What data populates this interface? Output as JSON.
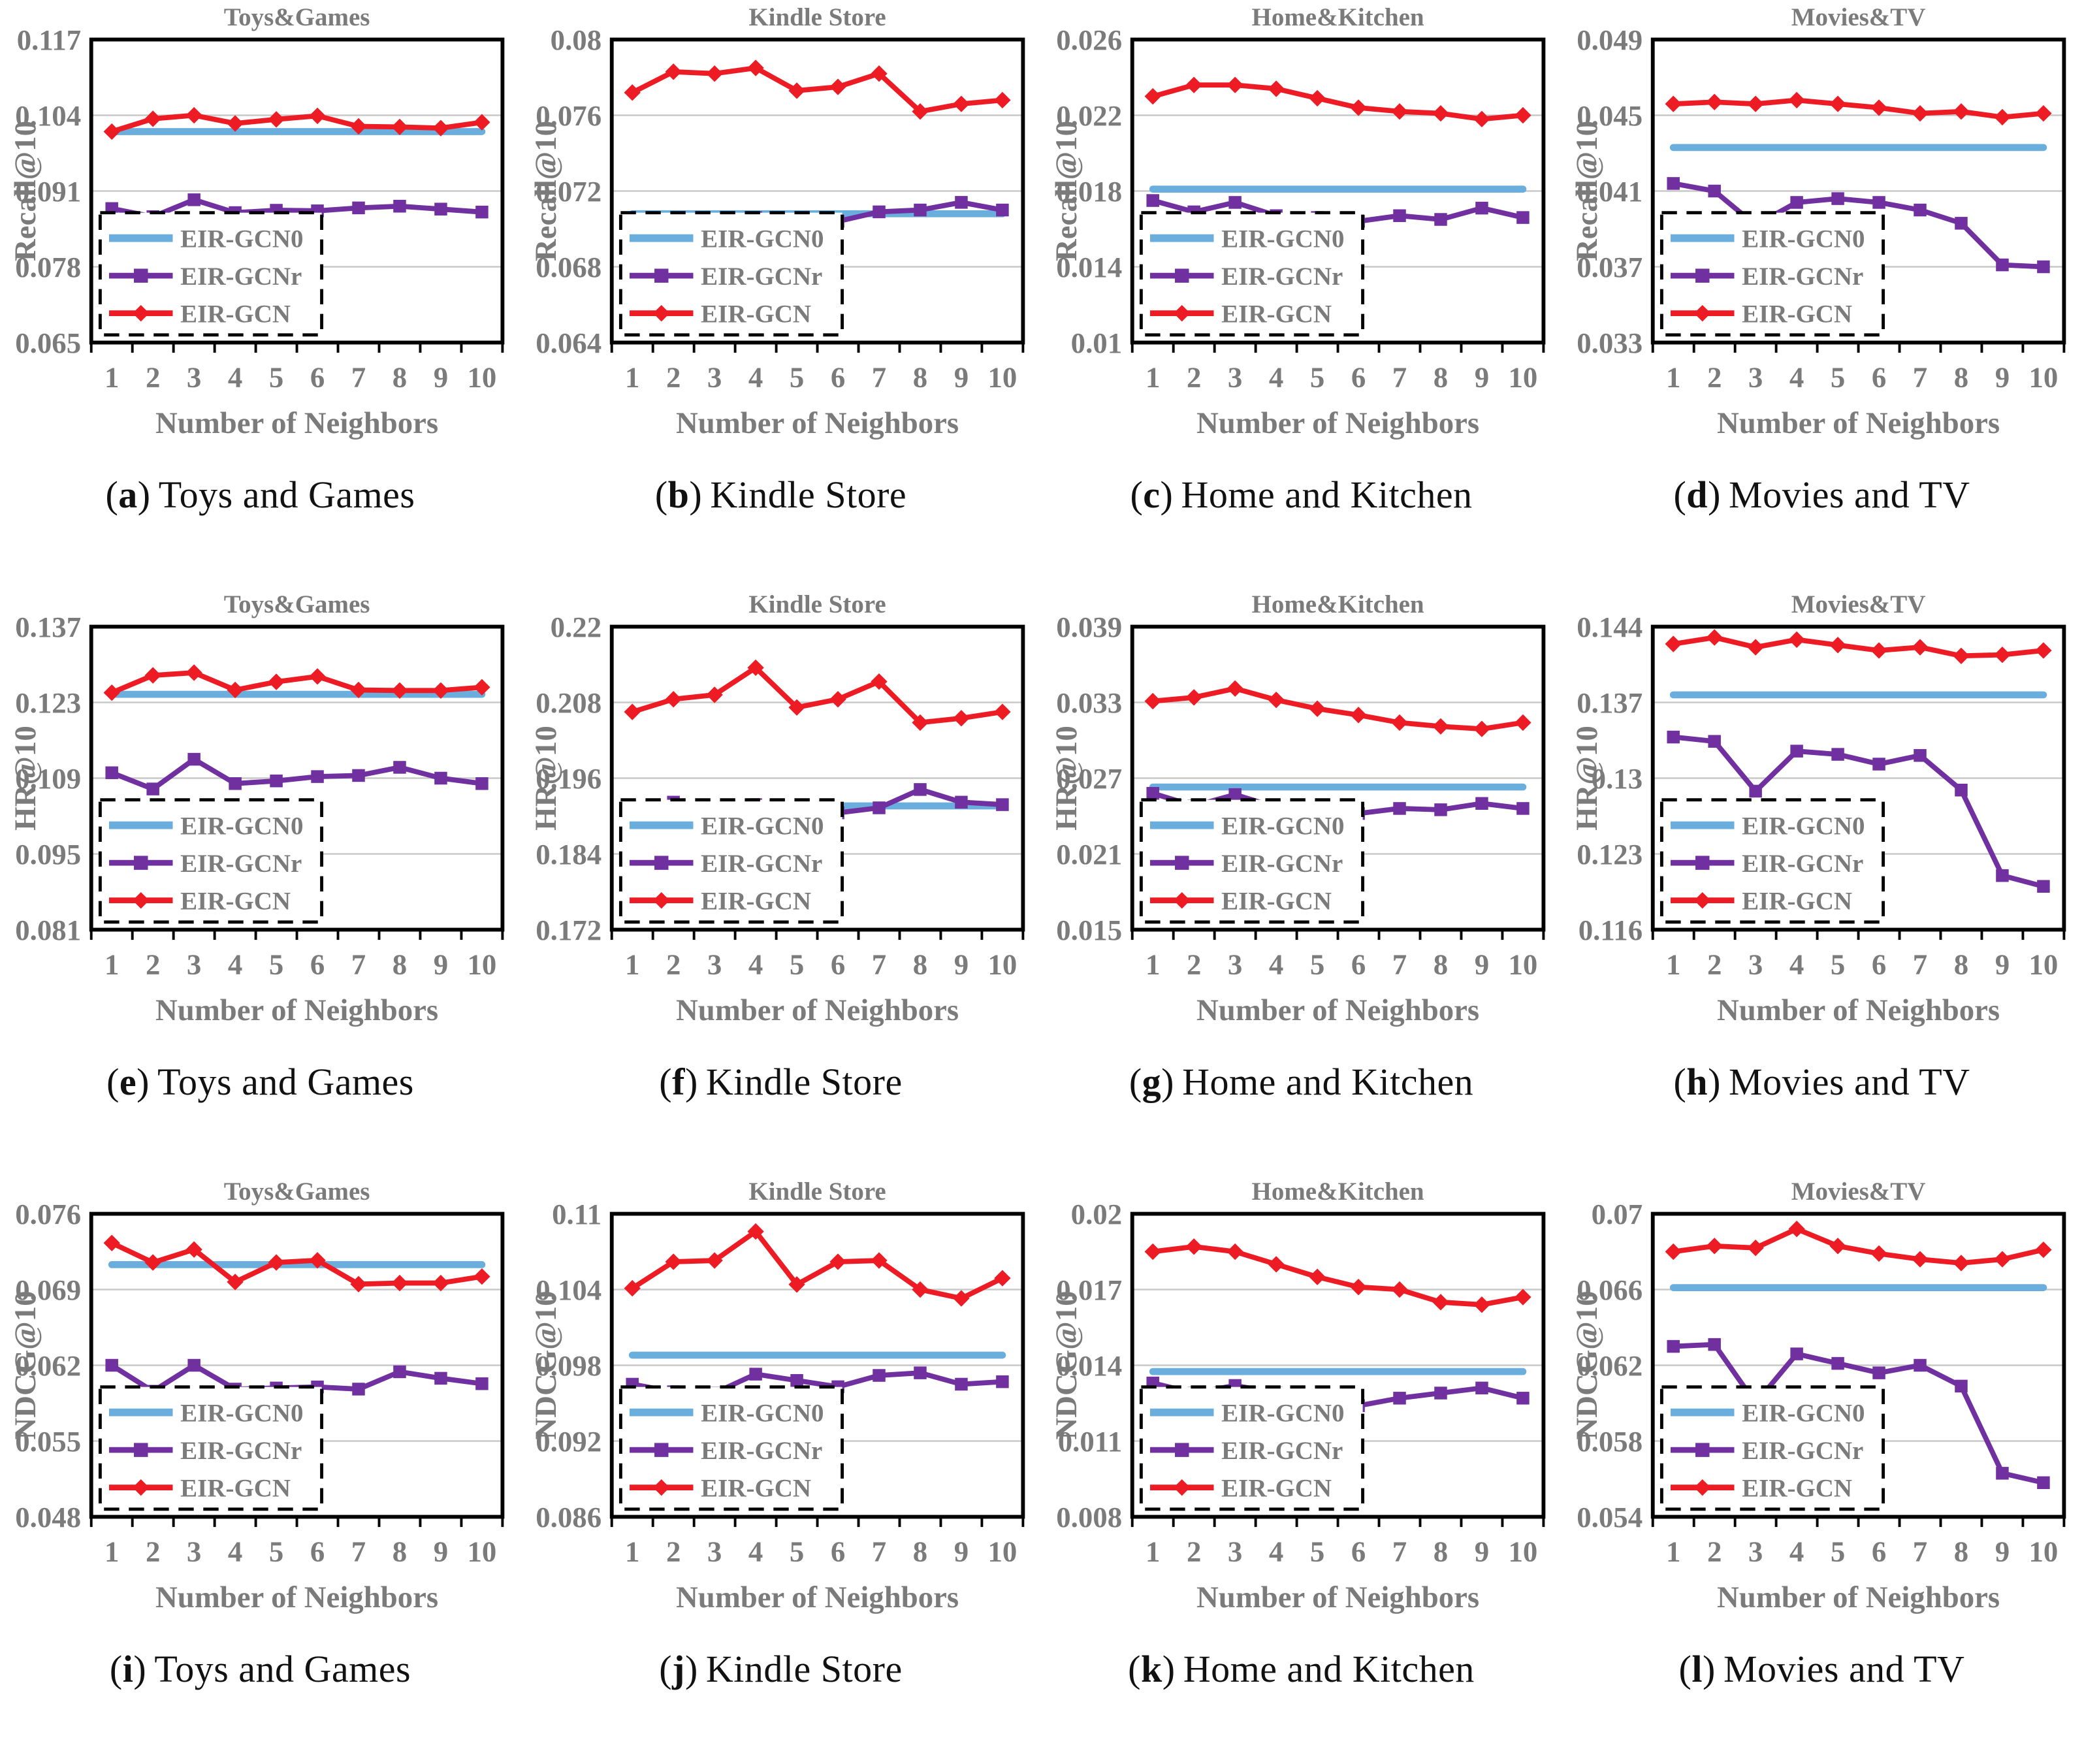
{
  "page": {
    "background": "#ffffff"
  },
  "colors": {
    "series_gcn0": "#6aaede",
    "series_gcnr": "#7030a0",
    "series_gcn": "#ed1c24",
    "axis_text": "#7b7b7b",
    "grid": "#c8c8c8",
    "plot_border": "#000000",
    "caption_text": "#111111"
  },
  "caption_format": {
    "open": "(",
    "close": ")"
  },
  "shared": {
    "xlabel": "Number of Neighbors",
    "legend_labels": [
      "EIR-GCN0",
      "EIR-GCNr",
      "EIR-GCN"
    ],
    "legend_position": "bottom-left",
    "grid": "horizontal"
  },
  "chart_data": [
    {
      "type": "line",
      "id": "a",
      "title": "Toys&Games",
      "ylabel": "Recall@10",
      "xlabel": "Number of Neighbors",
      "x": [
        1,
        2,
        3,
        4,
        5,
        6,
        7,
        8,
        9,
        10
      ],
      "ylim": [
        0.065,
        0.117
      ],
      "yticks": [
        "0.065",
        "0.078",
        "0.091",
        "0.104",
        "0.117"
      ],
      "series": [
        {
          "name": "EIR-GCN0",
          "color": "#6aaede",
          "marker": "none",
          "values": [
            0.1012,
            0.1012,
            0.1012,
            0.1012,
            0.1012,
            0.1012,
            0.1012,
            0.1012,
            0.1012,
            0.1012
          ]
        },
        {
          "name": "EIR-GCNr",
          "color": "#7030a0",
          "marker": "square",
          "values": [
            0.088,
            0.0866,
            0.0895,
            0.0873,
            0.0877,
            0.0876,
            0.0881,
            0.0884,
            0.0879,
            0.0874
          ]
        },
        {
          "name": "EIR-GCN",
          "color": "#ed1c24",
          "marker": "diamond",
          "values": [
            0.1012,
            0.1034,
            0.104,
            0.1026,
            0.1033,
            0.1039,
            0.1021,
            0.102,
            0.1018,
            0.1028
          ]
        }
      ],
      "caption": {
        "letter": "a",
        "text": "Toys and Games"
      }
    },
    {
      "type": "line",
      "id": "b",
      "title": "Kindle Store",
      "ylabel": "Recall@10",
      "xlabel": "Number of Neighbors",
      "x": [
        1,
        2,
        3,
        4,
        5,
        6,
        7,
        8,
        9,
        10
      ],
      "ylim": [
        0.064,
        0.08
      ],
      "yticks": [
        "0.064",
        "0.068",
        "0.072",
        "0.076",
        "0.08"
      ],
      "series": [
        {
          "name": "EIR-GCN0",
          "color": "#6aaede",
          "marker": "none",
          "values": [
            0.0708,
            0.0708,
            0.0708,
            0.0708,
            0.0708,
            0.0708,
            0.0708,
            0.0708,
            0.0708,
            0.0708
          ]
        },
        {
          "name": "EIR-GCNr",
          "color": "#7030a0",
          "marker": "square",
          "values": [
            0.0705,
            0.07,
            0.0704,
            0.0706,
            0.0705,
            0.0704,
            0.0709,
            0.071,
            0.0714,
            0.071
          ]
        },
        {
          "name": "EIR-GCN",
          "color": "#ed1c24",
          "marker": "diamond",
          "values": [
            0.0772,
            0.0783,
            0.0782,
            0.0785,
            0.0773,
            0.0775,
            0.0782,
            0.0762,
            0.0766,
            0.0768
          ]
        }
      ],
      "caption": {
        "letter": "b",
        "text": "Kindle Store"
      }
    },
    {
      "type": "line",
      "id": "c",
      "title": "Home&Kitchen",
      "ylabel": "Recall@10",
      "xlabel": "Number of Neighbors",
      "x": [
        1,
        2,
        3,
        4,
        5,
        6,
        7,
        8,
        9,
        10
      ],
      "ylim": [
        0.01,
        0.026
      ],
      "yticks": [
        "0.01",
        "0.014",
        "0.018",
        "0.022",
        "0.026"
      ],
      "series": [
        {
          "name": "EIR-GCN0",
          "color": "#6aaede",
          "marker": "none",
          "values": [
            0.0181,
            0.0181,
            0.0181,
            0.0181,
            0.0181,
            0.0181,
            0.0181,
            0.0181,
            0.0181,
            0.0181
          ]
        },
        {
          "name": "EIR-GCNr",
          "color": "#7030a0",
          "marker": "square",
          "values": [
            0.0175,
            0.0169,
            0.0174,
            0.0167,
            0.0166,
            0.0164,
            0.0167,
            0.0165,
            0.0171,
            0.0166
          ]
        },
        {
          "name": "EIR-GCN",
          "color": "#ed1c24",
          "marker": "diamond",
          "values": [
            0.023,
            0.0236,
            0.0236,
            0.0234,
            0.0229,
            0.0224,
            0.0222,
            0.0221,
            0.0218,
            0.022
          ]
        }
      ],
      "caption": {
        "letter": "c",
        "text": "Home and Kitchen"
      }
    },
    {
      "type": "line",
      "id": "d",
      "title": "Movies&TV",
      "ylabel": "Recall@10",
      "xlabel": "Number of Neighbors",
      "x": [
        1,
        2,
        3,
        4,
        5,
        6,
        7,
        8,
        9,
        10
      ],
      "ylim": [
        0.033,
        0.049
      ],
      "yticks": [
        "0.033",
        "0.037",
        "0.041",
        "0.045",
        "0.049"
      ],
      "series": [
        {
          "name": "EIR-GCN0",
          "color": "#6aaede",
          "marker": "none",
          "values": [
            0.0433,
            0.0433,
            0.0433,
            0.0433,
            0.0433,
            0.0433,
            0.0433,
            0.0433,
            0.0433,
            0.0433
          ]
        },
        {
          "name": "EIR-GCNr",
          "color": "#7030a0",
          "marker": "square",
          "values": [
            0.0414,
            0.041,
            0.0392,
            0.0404,
            0.0406,
            0.0404,
            0.04,
            0.0393,
            0.0371,
            0.037
          ]
        },
        {
          "name": "EIR-GCN",
          "color": "#ed1c24",
          "marker": "diamond",
          "values": [
            0.0456,
            0.0457,
            0.0456,
            0.0458,
            0.0456,
            0.0454,
            0.0451,
            0.0452,
            0.0449,
            0.0451
          ]
        }
      ],
      "caption": {
        "letter": "d",
        "text": "Movies and TV"
      }
    },
    {
      "type": "line",
      "id": "e",
      "title": "Toys&Games",
      "ylabel": "HR@10",
      "xlabel": "Number of Neighbors",
      "x": [
        1,
        2,
        3,
        4,
        5,
        6,
        7,
        8,
        9,
        10
      ],
      "ylim": [
        0.081,
        0.137
      ],
      "yticks": [
        "0.081",
        "0.095",
        "0.109",
        "0.123",
        "0.137"
      ],
      "series": [
        {
          "name": "EIR-GCN0",
          "color": "#6aaede",
          "marker": "none",
          "values": [
            0.1245,
            0.1245,
            0.1245,
            0.1245,
            0.1245,
            0.1245,
            0.1245,
            0.1245,
            0.1245,
            0.1245
          ]
        },
        {
          "name": "EIR-GCNr",
          "color": "#7030a0",
          "marker": "square",
          "values": [
            0.11,
            0.107,
            0.1125,
            0.108,
            0.1085,
            0.1093,
            0.1095,
            0.111,
            0.109,
            0.108
          ]
        },
        {
          "name": "EIR-GCN",
          "color": "#ed1c24",
          "marker": "diamond",
          "values": [
            0.1248,
            0.128,
            0.1285,
            0.1253,
            0.1268,
            0.1278,
            0.1253,
            0.1252,
            0.1252,
            0.1258
          ]
        }
      ],
      "caption": {
        "letter": "e",
        "text": "Toys and Games"
      }
    },
    {
      "type": "line",
      "id": "f",
      "title": "Kindle Store",
      "ylabel": "HR@10",
      "xlabel": "Number of Neighbors",
      "x": [
        1,
        2,
        3,
        4,
        5,
        6,
        7,
        8,
        9,
        10
      ],
      "ylim": [
        0.172,
        0.22
      ],
      "yticks": [
        "0.172",
        "0.184",
        "0.196",
        "0.208",
        "0.22"
      ],
      "series": [
        {
          "name": "EIR-GCN0",
          "color": "#6aaede",
          "marker": "none",
          "values": [
            0.1916,
            0.1916,
            0.1916,
            0.1916,
            0.1916,
            0.1916,
            0.1916,
            0.1916,
            0.1916,
            0.1916
          ]
        },
        {
          "name": "EIR-GCNr",
          "color": "#7030a0",
          "marker": "square",
          "values": [
            0.1912,
            0.1922,
            0.191,
            0.1918,
            0.1913,
            0.1905,
            0.1913,
            0.1942,
            0.1922,
            0.1918
          ]
        },
        {
          "name": "EIR-GCN",
          "color": "#ed1c24",
          "marker": "diamond",
          "values": [
            0.2065,
            0.2085,
            0.2092,
            0.2135,
            0.2072,
            0.2085,
            0.2113,
            0.2048,
            0.2055,
            0.2065
          ]
        }
      ],
      "caption": {
        "letter": "f",
        "text": "Kindle Store"
      }
    },
    {
      "type": "line",
      "id": "g",
      "title": "Home&Kitchen",
      "ylabel": "HR@10",
      "xlabel": "Number of Neighbors",
      "x": [
        1,
        2,
        3,
        4,
        5,
        6,
        7,
        8,
        9,
        10
      ],
      "ylim": [
        0.015,
        0.039
      ],
      "yticks": [
        "0.015",
        "0.021",
        "0.027",
        "0.033",
        "0.039"
      ],
      "series": [
        {
          "name": "EIR-GCN0",
          "color": "#6aaede",
          "marker": "none",
          "values": [
            0.0263,
            0.0263,
            0.0263,
            0.0263,
            0.0263,
            0.0263,
            0.0263,
            0.0263,
            0.0263,
            0.0263
          ]
        },
        {
          "name": "EIR-GCNr",
          "color": "#7030a0",
          "marker": "square",
          "values": [
            0.0258,
            0.0248,
            0.0257,
            0.0247,
            0.0245,
            0.0242,
            0.0246,
            0.0245,
            0.025,
            0.0246
          ]
        },
        {
          "name": "EIR-GCN",
          "color": "#ed1c24",
          "marker": "diamond",
          "values": [
            0.0331,
            0.0334,
            0.0341,
            0.0332,
            0.0325,
            0.032,
            0.0314,
            0.0311,
            0.0309,
            0.0314
          ]
        }
      ],
      "caption": {
        "letter": "g",
        "text": "Home and Kitchen"
      }
    },
    {
      "type": "line",
      "id": "h",
      "title": "Movies&TV",
      "ylabel": "HR@10",
      "xlabel": "Number of Neighbors",
      "x": [
        1,
        2,
        3,
        4,
        5,
        6,
        7,
        8,
        9,
        10
      ],
      "ylim": [
        0.116,
        0.144
      ],
      "yticks": [
        "0.116",
        "0.123",
        "0.13",
        "0.137",
        "0.144"
      ],
      "series": [
        {
          "name": "EIR-GCN0",
          "color": "#6aaede",
          "marker": "none",
          "values": [
            0.1377,
            0.1377,
            0.1377,
            0.1377,
            0.1377,
            0.1377,
            0.1377,
            0.1377,
            0.1377,
            0.1377
          ]
        },
        {
          "name": "EIR-GCNr",
          "color": "#7030a0",
          "marker": "square",
          "values": [
            0.1338,
            0.1334,
            0.1288,
            0.1325,
            0.1322,
            0.1313,
            0.1321,
            0.1289,
            0.121,
            0.12
          ]
        },
        {
          "name": "EIR-GCN",
          "color": "#ed1c24",
          "marker": "diamond",
          "values": [
            0.1424,
            0.143,
            0.1421,
            0.1428,
            0.1423,
            0.1418,
            0.1421,
            0.1413,
            0.1414,
            0.1418
          ]
        }
      ],
      "caption": {
        "letter": "h",
        "text": "Movies and TV"
      }
    },
    {
      "type": "line",
      "id": "i",
      "title": "Toys&Games",
      "ylabel": "NDCG@10",
      "xlabel": "Number of Neighbors",
      "x": [
        1,
        2,
        3,
        4,
        5,
        6,
        7,
        8,
        9,
        10
      ],
      "ylim": [
        0.048,
        0.076
      ],
      "yticks": [
        "0.048",
        "0.055",
        "0.062",
        "0.069",
        "0.076"
      ],
      "series": [
        {
          "name": "EIR-GCN0",
          "color": "#6aaede",
          "marker": "none",
          "values": [
            0.0713,
            0.0713,
            0.0713,
            0.0713,
            0.0713,
            0.0713,
            0.0713,
            0.0713,
            0.0713,
            0.0713
          ]
        },
        {
          "name": "EIR-GCNr",
          "color": "#7030a0",
          "marker": "square",
          "values": [
            0.062,
            0.0596,
            0.062,
            0.0598,
            0.0599,
            0.06,
            0.0598,
            0.0614,
            0.0608,
            0.0603
          ]
        },
        {
          "name": "EIR-GCN",
          "color": "#ed1c24",
          "marker": "diamond",
          "values": [
            0.0733,
            0.0715,
            0.0727,
            0.0697,
            0.0715,
            0.0717,
            0.0695,
            0.0696,
            0.0696,
            0.0702
          ]
        }
      ],
      "caption": {
        "letter": "i",
        "text": "Toys and Games"
      }
    },
    {
      "type": "line",
      "id": "j",
      "title": "Kindle Store",
      "ylabel": "NDCG@10",
      "xlabel": "Number of Neighbors",
      "x": [
        1,
        2,
        3,
        4,
        5,
        6,
        7,
        8,
        9,
        10
      ],
      "ylim": [
        0.086,
        0.11
      ],
      "yticks": [
        "0.086",
        "0.092",
        "0.098",
        "0.104",
        "0.11"
      ],
      "series": [
        {
          "name": "EIR-GCN0",
          "color": "#6aaede",
          "marker": "none",
          "values": [
            0.0988,
            0.0988,
            0.0988,
            0.0988,
            0.0988,
            0.0988,
            0.0988,
            0.0988,
            0.0988,
            0.0988
          ]
        },
        {
          "name": "EIR-GCNr",
          "color": "#7030a0",
          "marker": "square",
          "values": [
            0.0965,
            0.0959,
            0.0958,
            0.0973,
            0.0968,
            0.0963,
            0.0972,
            0.0974,
            0.0965,
            0.0967
          ]
        },
        {
          "name": "EIR-GCN",
          "color": "#ed1c24",
          "marker": "diamond",
          "values": [
            0.1041,
            0.1062,
            0.1063,
            0.1086,
            0.1044,
            0.1062,
            0.1063,
            0.104,
            0.1033,
            0.1049
          ]
        }
      ],
      "caption": {
        "letter": "j",
        "text": "Kindle Store"
      }
    },
    {
      "type": "line",
      "id": "k",
      "title": "Home&Kitchen",
      "ylabel": "NDCG@10",
      "xlabel": "Number of Neighbors",
      "x": [
        1,
        2,
        3,
        4,
        5,
        6,
        7,
        8,
        9,
        10
      ],
      "ylim": [
        0.008,
        0.02
      ],
      "yticks": [
        "0.008",
        "0.011",
        "0.014",
        "0.017",
        "0.02"
      ],
      "series": [
        {
          "name": "EIR-GCN0",
          "color": "#6aaede",
          "marker": "none",
          "values": [
            0.01375,
            0.01375,
            0.01375,
            0.01375,
            0.01375,
            0.01375,
            0.01375,
            0.01375,
            0.01375,
            0.01375
          ]
        },
        {
          "name": "EIR-GCNr",
          "color": "#7030a0",
          "marker": "square",
          "values": [
            0.0133,
            0.0129,
            0.0132,
            0.0129,
            0.0128,
            0.0124,
            0.0127,
            0.0129,
            0.0131,
            0.0127
          ]
        },
        {
          "name": "EIR-GCN",
          "color": "#ed1c24",
          "marker": "diamond",
          "values": [
            0.0185,
            0.0187,
            0.0185,
            0.018,
            0.0175,
            0.0171,
            0.017,
            0.0165,
            0.0164,
            0.0167
          ]
        }
      ],
      "caption": {
        "letter": "k",
        "text": "Home and Kitchen"
      }
    },
    {
      "type": "line",
      "id": "l",
      "title": "Movies&TV",
      "ylabel": "NDCG@10",
      "xlabel": "Number of Neighbors",
      "x": [
        1,
        2,
        3,
        4,
        5,
        6,
        7,
        8,
        9,
        10
      ],
      "ylim": [
        0.054,
        0.07
      ],
      "yticks": [
        "0.054",
        "0.058",
        "0.062",
        "0.066",
        "0.07"
      ],
      "series": [
        {
          "name": "EIR-GCN0",
          "color": "#6aaede",
          "marker": "none",
          "values": [
            0.0661,
            0.0661,
            0.0661,
            0.0661,
            0.0661,
            0.0661,
            0.0661,
            0.0661,
            0.0661,
            0.0661
          ]
        },
        {
          "name": "EIR-GCNr",
          "color": "#7030a0",
          "marker": "square",
          "values": [
            0.063,
            0.0631,
            0.06,
            0.0626,
            0.0621,
            0.0616,
            0.062,
            0.0609,
            0.0563,
            0.0558
          ]
        },
        {
          "name": "EIR-GCN",
          "color": "#ed1c24",
          "marker": "diamond",
          "values": [
            0.068,
            0.0683,
            0.0682,
            0.0692,
            0.0683,
            0.0679,
            0.0676,
            0.0674,
            0.0676,
            0.0681
          ]
        }
      ],
      "caption": {
        "letter": "l",
        "text": "Movies and TV"
      }
    }
  ]
}
